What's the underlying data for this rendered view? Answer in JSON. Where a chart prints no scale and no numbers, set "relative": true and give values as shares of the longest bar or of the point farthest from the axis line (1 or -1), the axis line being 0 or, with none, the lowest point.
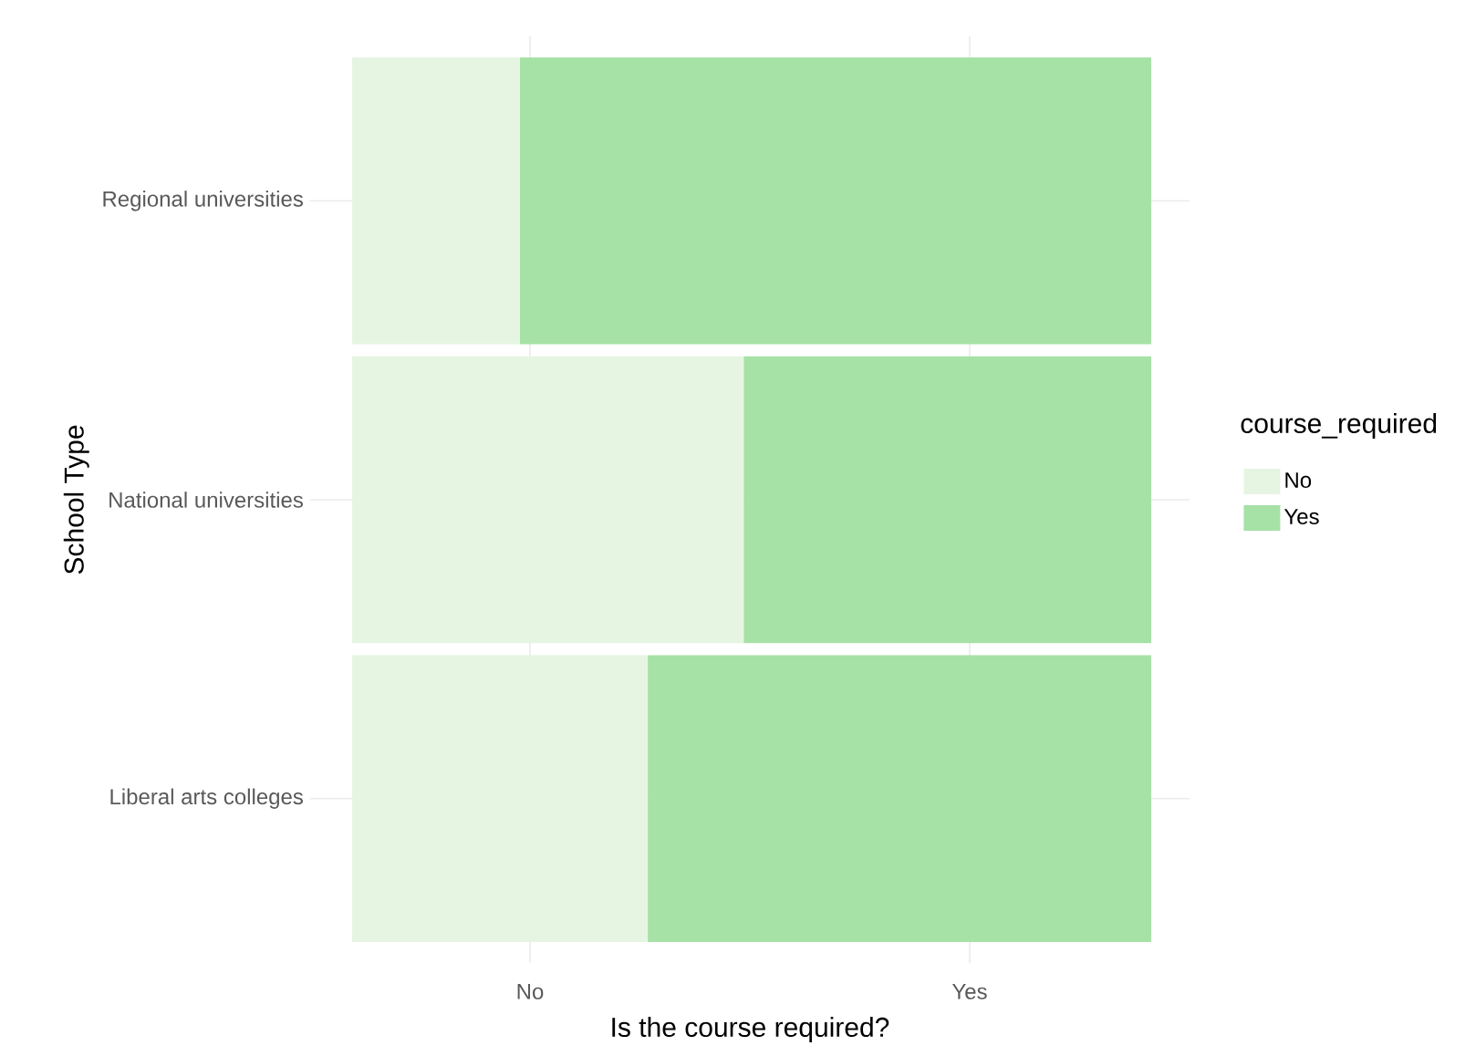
{
  "chart_data": {
    "type": "bar",
    "orientation": "horizontal",
    "stacked": true,
    "relative": true,
    "xlabel": "Is the course required?",
    "ylabel": "School Type",
    "legend_title": "course_required",
    "categories": [
      "Regional universities",
      "National universities",
      "Liberal arts colleges"
    ],
    "series": [
      {
        "name": "No",
        "color": "#e6f5e2",
        "values": [
          0.21,
          0.49,
          0.37
        ]
      },
      {
        "name": "Yes",
        "color": "#a6e1a6",
        "values": [
          0.79,
          0.51,
          0.63
        ]
      }
    ],
    "annotations": [
      "No",
      "Yes"
    ],
    "grid": true,
    "legend": "right"
  }
}
